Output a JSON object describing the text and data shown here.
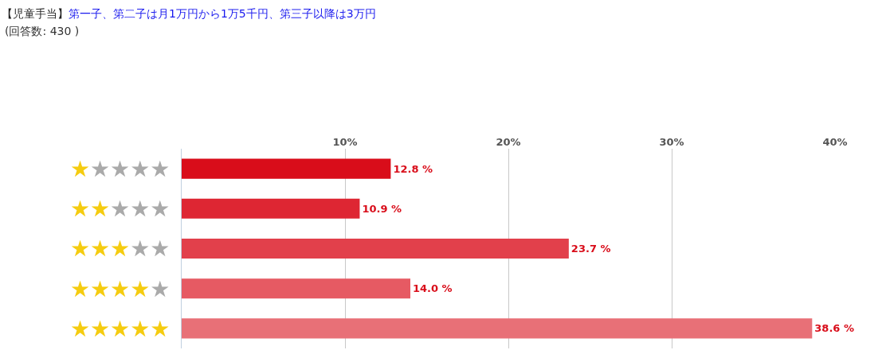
{
  "chart_data": {
    "type": "bar",
    "orientation": "horizontal",
    "title": "【児童手当】",
    "subtitle": "第一子、第二子は月1万円から1万5千円、第三子以降は3万円",
    "annotations": [
      "(回答数: 430 )"
    ],
    "categories": [
      "★★★★★",
      "★★★★★",
      "★★★★★",
      "★★★★★",
      "★★★★★"
    ],
    "values": [
      12.8,
      10.9,
      23.7,
      14.0,
      38.6
    ],
    "value_labels": [
      "12.8 %",
      "10.9 %",
      "23.7 %",
      "14.0 %",
      "38.6 %"
    ],
    "colors": [
      "#d90d1a",
      "#de2633",
      "#e2404b",
      "#e65a63",
      "#e87077"
    ],
    "xlim": [
      0,
      40
    ],
    "xticks": [
      {
        "value": 10,
        "label": "10%"
      },
      {
        "value": 20,
        "label": "20%"
      },
      {
        "value": 30,
        "label": "30%"
      },
      {
        "value": 40,
        "label": "40%"
      }
    ],
    "grid": "x",
    "legend": false
  }
}
